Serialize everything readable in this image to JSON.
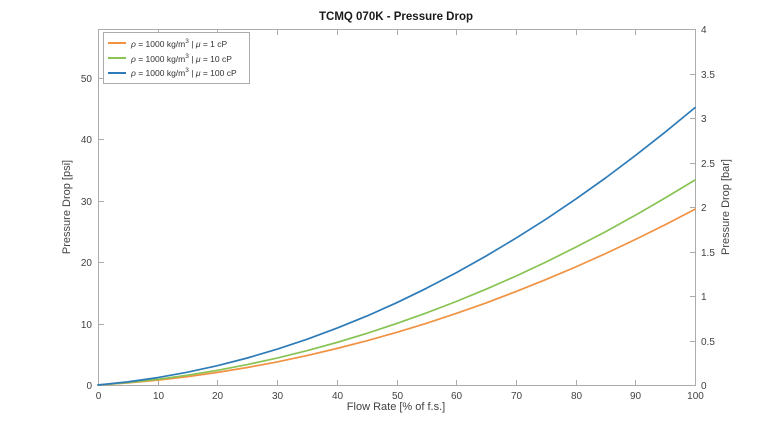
{
  "chart_data": {
    "type": "line",
    "title": "TCMQ 070K - Pressure Drop",
    "xlabel": "Flow Rate [% of f.s.]",
    "ylabel_left": "Pressure Drop [psi]",
    "ylabel_right": "Pressure Drop [bar]",
    "xlim": [
      0,
      100
    ],
    "ylim_left_psi": [
      0,
      58
    ],
    "ylim_right_bar": [
      0,
      4
    ],
    "xticks": [
      0,
      10,
      20,
      30,
      40,
      50,
      60,
      70,
      80,
      90,
      100
    ],
    "yticks_left": [
      0,
      10,
      20,
      30,
      40,
      50
    ],
    "yticks_right": [
      0,
      0.5,
      1,
      1.5,
      2,
      2.5,
      3,
      3.5,
      4
    ],
    "grid": false,
    "legend_position": "top-left",
    "x": [
      0,
      5,
      10,
      15,
      20,
      25,
      30,
      35,
      40,
      45,
      50,
      55,
      60,
      65,
      70,
      75,
      80,
      85,
      90,
      95,
      100
    ],
    "series": [
      {
        "name": "rho=1000 kg/m3, mu=1 cP",
        "label_sym1": "ρ",
        "label_pre": " = 1000 kg/m",
        "label_sup": "3",
        "label_mid": " | ",
        "label_sym2": "μ",
        "label_post": " = 1 cP",
        "color": "#F09242",
        "values_psi": [
          0,
          0.34,
          0.79,
          1.36,
          2.05,
          2.85,
          3.76,
          4.79,
          5.94,
          7.2,
          8.57,
          10.06,
          11.66,
          13.38,
          15.22,
          17.17,
          19.23,
          21.41,
          23.71,
          26.12,
          28.64
        ]
      },
      {
        "name": "rho=1000 kg/m3, mu=10 cP",
        "label_sym1": "ρ",
        "label_pre": " = 1000 kg/m",
        "label_sup": "3",
        "label_mid": " | ",
        "label_sym2": "μ",
        "label_post": " = 10 cP",
        "color": "#88C353",
        "values_psi": [
          0,
          0.4,
          0.93,
          1.59,
          2.39,
          3.33,
          4.39,
          5.59,
          6.93,
          8.4,
          10.0,
          11.74,
          13.61,
          15.61,
          17.75,
          20.03,
          22.43,
          24.97,
          27.65,
          30.46,
          33.4
        ]
      },
      {
        "name": "rho=1000 kg/m3, mu=100 cP",
        "label_sym1": "ρ",
        "label_pre": " = 1000 kg/m",
        "label_sup": "3",
        "label_mid": " | ",
        "label_sym2": "μ",
        "label_post": " = 100 cP",
        "color": "#2D7BB8",
        "values_psi": [
          0,
          0.51,
          1.21,
          2.09,
          3.15,
          4.4,
          5.83,
          7.45,
          9.25,
          11.23,
          13.4,
          15.75,
          18.29,
          21.01,
          23.91,
          27.0,
          30.27,
          33.73,
          37.37,
          41.19,
          45.2
        ]
      }
    ]
  },
  "colors": {
    "axis_line": "#ababab",
    "tick_text": "#424242",
    "title_text": "#1a1a1a",
    "background": "#ffffff",
    "legend_border": "#ababab"
  }
}
